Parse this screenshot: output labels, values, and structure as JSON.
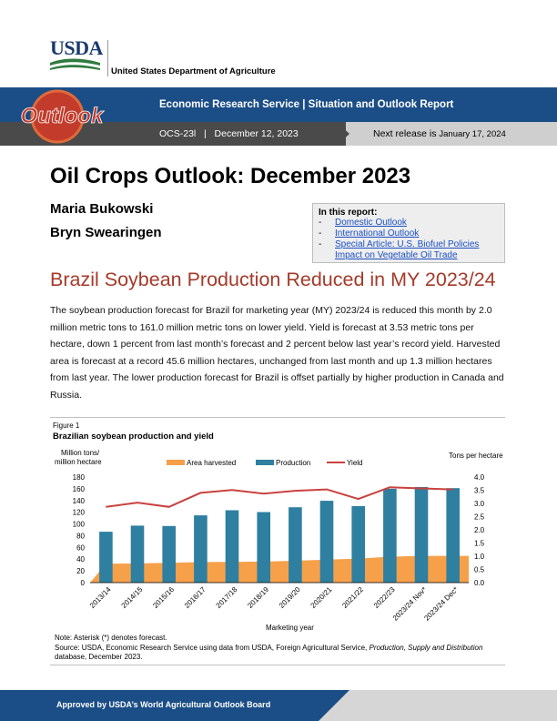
{
  "header": {
    "agency_abbr": "USDA",
    "department": "United States Department of Agriculture",
    "logo_word": "Outlook",
    "banner_title": "Economic Research Service  |  Situation and Outlook Report",
    "report_id": "OCS-23l",
    "report_date": "December 12, 2023",
    "next_release_label": "Next release is",
    "next_release_date": "January 17, 2024"
  },
  "title": "Oil Crops Outlook: December 2023",
  "authors": [
    "Maria Bukowski",
    "Bryn Swearingen"
  ],
  "in_this_report": {
    "heading": "In this report:",
    "items": [
      "Domestic Outlook",
      "International Outlook",
      "Special Article: U.S. Biofuel Policies Impact on Vegetable Oil Trade"
    ]
  },
  "section_title": "Brazil Soybean Production Reduced in MY 2023/24",
  "body_paragraph": "The soybean production forecast for Brazil for marketing year (MY) 2023/24 is reduced this month by 2.0 million metric tons to 161.0 million metric tons on lower yield. Yield is forecast at 3.53 metric tons per hectare, down 1 percent from last month’s forecast and 2 percent below last year’s record yield. Harvested area is forecast at a record 45.6 million hectares, unchanged from last month and up 1.3 million hectares from last year. The lower production forecast for Brazil is offset partially by higher production in Canada and Russia.",
  "figure": {
    "label": "Figure 1",
    "title": "Brazilian soybean production and yield",
    "note": "Note: Asterisk (*) denotes forecast.",
    "source_prefix": "Source: USDA, Economic Research Service using data from USDA, Foreign Agricultural Service, ",
    "source_italic": "Production, Supply and Distribution",
    "source_suffix": " database, December 2023."
  },
  "chart_data": {
    "type": "bar",
    "title": "Brazilian soybean production and yield",
    "xlabel": "Marketing year",
    "ylabel_lines": [
      "Million tons/",
      "million hectare"
    ],
    "y2label": "Tons per hectare",
    "ylim": [
      0,
      180
    ],
    "y_ticks": [
      0,
      20,
      40,
      60,
      80,
      100,
      120,
      140,
      160,
      180
    ],
    "y2lim": [
      0.0,
      4.0
    ],
    "y2_ticks": [
      "0.0",
      "0.5",
      "1.0",
      "1.5",
      "2.0",
      "2.5",
      "3.0",
      "3.5",
      "4.0"
    ],
    "grid": false,
    "legend_position": "top",
    "categories": [
      "2013/14",
      "2014/15",
      "2015/16",
      "2016/17",
      "2017/18",
      "2018/19",
      "2019/20",
      "2020/21",
      "2021/22",
      "2022/23",
      "2023/24 Nov*",
      "2023/24 Dec*"
    ],
    "series": [
      {
        "name": "Area harvested",
        "type": "area",
        "color": "#f7a04a",
        "values": [
          32.1,
          32.7,
          33.9,
          35.1,
          35.2,
          35.9,
          37.2,
          39.2,
          41.0,
          44.3,
          45.6,
          45.6
        ]
      },
      {
        "name": "Production",
        "type": "bar",
        "color": "#2e7fa0",
        "values": [
          86.7,
          97.1,
          96.5,
          114.6,
          123.4,
          120.3,
          128.5,
          139.5,
          130.5,
          160.0,
          163.0,
          161.0
        ]
      },
      {
        "name": "Yield",
        "type": "line",
        "axis": "right",
        "color": "#c8423f",
        "values": [
          2.87,
          3.03,
          2.87,
          3.4,
          3.51,
          3.37,
          3.48,
          3.53,
          3.17,
          3.61,
          3.57,
          3.53
        ]
      }
    ],
    "colors": {
      "axis": "#000000"
    }
  },
  "footer": {
    "approval": "Approved by USDA’s World Agricultural Outlook Board"
  },
  "colors": {
    "banner_blue": "#1b4e86",
    "title_red": "#a53a2a",
    "link_blue": "#1a4fc4"
  }
}
